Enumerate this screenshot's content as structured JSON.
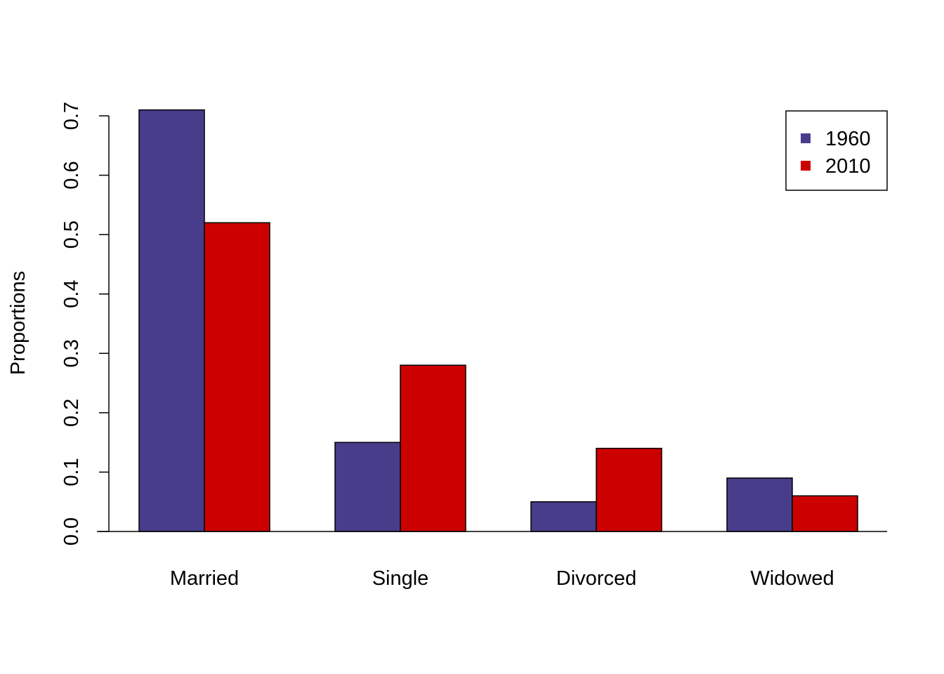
{
  "chart_data": {
    "type": "bar",
    "orientation": "vertical",
    "grouping": "side-by-side",
    "title": "",
    "xlabel": "",
    "ylabel": "Proportions",
    "categories": [
      "Married",
      "Single",
      "Divorced",
      "Widowed"
    ],
    "series": [
      {
        "name": "1960",
        "color": "#483D8B",
        "values": [
          0.71,
          0.15,
          0.05,
          0.09
        ]
      },
      {
        "name": "2010",
        "color": "#CD0000",
        "values": [
          0.52,
          0.28,
          0.14,
          0.06
        ]
      }
    ],
    "ylim": [
      0,
      0.7
    ],
    "yticks": [
      "0.0",
      "0.1",
      "0.2",
      "0.3",
      "0.4",
      "0.5",
      "0.6",
      "0.7"
    ],
    "grid": false,
    "legend": {
      "position": "top-right",
      "entries": [
        "1960",
        "2010"
      ]
    }
  }
}
